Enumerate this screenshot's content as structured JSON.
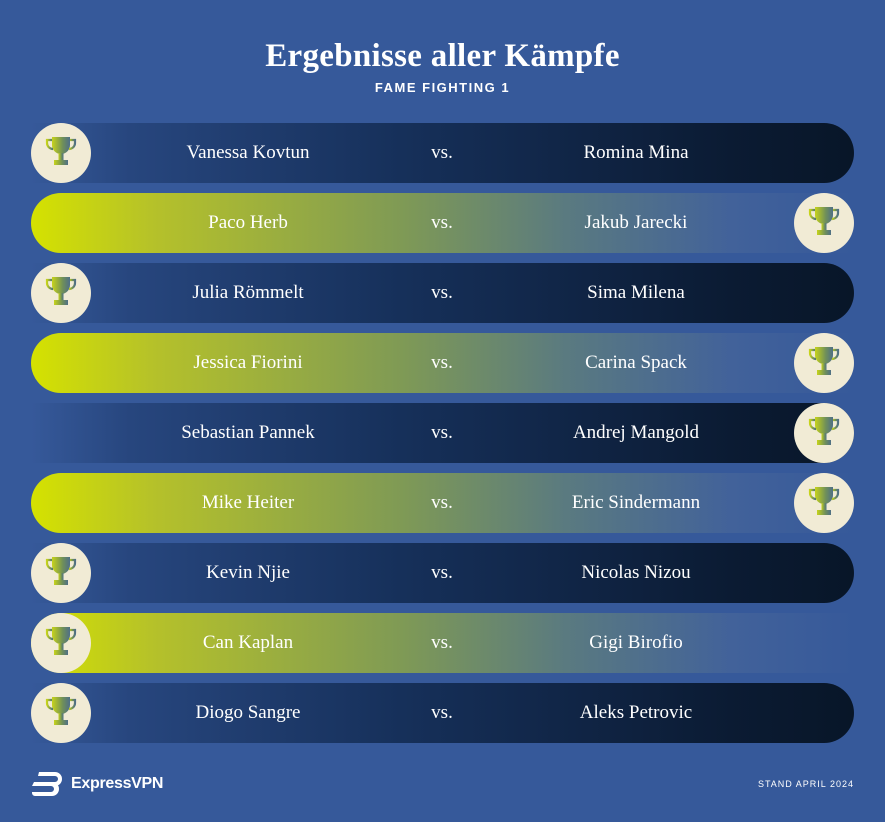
{
  "header": {
    "title": "Ergebnisse aller Kämpfe",
    "subtitle": "FAME FIGHTING 1"
  },
  "vs_label": "vs.",
  "colors": {
    "background": "#36599a",
    "highlight": "#d5e200",
    "dark": "#081628",
    "trophy_circle": "#f1ebd5"
  },
  "fights": [
    {
      "fighter1": "Vanessa Kovtun",
      "fighter2": "Romina Mina",
      "winner": "left",
      "style": "dark"
    },
    {
      "fighter1": "Paco Herb",
      "fighter2": "Jakub Jarecki",
      "winner": "right",
      "style": "light"
    },
    {
      "fighter1": "Julia Römmelt",
      "fighter2": "Sima Milena",
      "winner": "left",
      "style": "dark"
    },
    {
      "fighter1": "Jessica Fiorini",
      "fighter2": "Carina Spack",
      "winner": "right",
      "style": "light"
    },
    {
      "fighter1": "Sebastian Pannek",
      "fighter2": "Andrej Mangold",
      "winner": "right",
      "style": "dark"
    },
    {
      "fighter1": "Mike Heiter",
      "fighter2": "Eric Sindermann",
      "winner": "right",
      "style": "light"
    },
    {
      "fighter1": "Kevin Njie",
      "fighter2": "Nicolas Nizou",
      "winner": "left",
      "style": "dark"
    },
    {
      "fighter1": "Can Kaplan",
      "fighter2": "Gigi Birofio",
      "winner": "left",
      "style": "light"
    },
    {
      "fighter1": "Diogo Sangre",
      "fighter2": "Aleks Petrovic",
      "winner": "left",
      "style": "dark"
    }
  ],
  "footer": {
    "brand": "ExpressVPN",
    "date": "STAND APRIL 2024"
  },
  "icons": {
    "trophy": "trophy-icon",
    "logo": "expressvpn-logo-icon"
  }
}
